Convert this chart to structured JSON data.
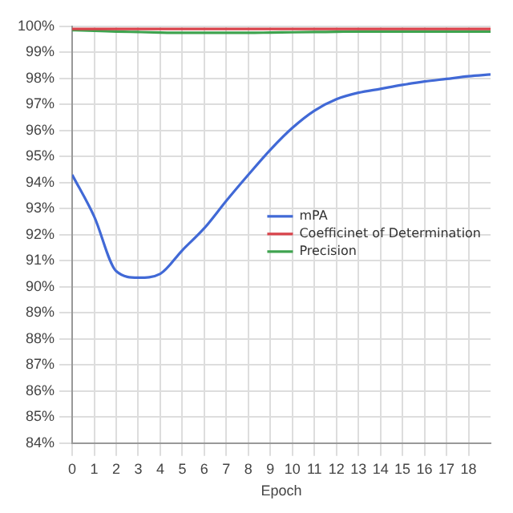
{
  "chart_data": {
    "type": "line",
    "xlabel": "Epoch",
    "x": [
      0,
      1,
      2,
      3,
      4,
      5,
      6,
      7,
      8,
      9,
      10,
      11,
      12,
      13,
      14,
      15,
      16,
      17,
      18,
      19
    ],
    "series": [
      {
        "name": "mPA",
        "color": "#4169d6",
        "values": [
          94.3,
          92.7,
          90.6,
          90.35,
          90.5,
          91.4,
          92.25,
          93.3,
          94.3,
          95.26,
          96.1,
          96.76,
          97.2,
          97.45,
          97.6,
          97.75,
          97.88,
          97.98,
          98.08,
          98.15
        ]
      },
      {
        "name": "Coefficinet of Determination",
        "color": "#d9434b",
        "values": [
          99.9,
          99.9,
          99.9,
          99.9,
          99.9,
          99.9,
          99.9,
          99.9,
          99.9,
          99.9,
          99.9,
          99.9,
          99.9,
          99.9,
          99.9,
          99.9,
          99.9,
          99.9,
          99.9,
          99.9
        ]
      },
      {
        "name": "Precision",
        "color": "#3fa34f",
        "values": [
          99.85,
          99.83,
          99.8,
          99.78,
          99.76,
          99.75,
          99.75,
          99.75,
          99.75,
          99.76,
          99.77,
          99.78,
          99.79,
          99.8,
          99.8,
          99.8,
          99.8,
          99.8,
          99.8,
          99.8
        ]
      }
    ],
    "xlim": [
      0,
      19
    ],
    "xticks": [
      0,
      1,
      2,
      3,
      4,
      5,
      6,
      7,
      8,
      9,
      10,
      11,
      12,
      13,
      14,
      15,
      16,
      17,
      18
    ],
    "ylim": [
      84,
      100
    ],
    "yticks": [
      {
        "value": 84,
        "label": "84%"
      },
      {
        "value": 85,
        "label": "85%"
      },
      {
        "value": 86,
        "label": "86%"
      },
      {
        "value": 87,
        "label": "87%"
      },
      {
        "value": 88,
        "label": "88%"
      },
      {
        "value": 89,
        "label": "89%"
      },
      {
        "value": 90,
        "label": "90%"
      },
      {
        "value": 91,
        "label": "91%"
      },
      {
        "value": 92,
        "label": "92%"
      },
      {
        "value": 93,
        "label": "93%"
      },
      {
        "value": 94,
        "label": "94%"
      },
      {
        "value": 95,
        "label": "95%"
      },
      {
        "value": 96,
        "label": "96%"
      },
      {
        "value": 97,
        "label": "97%"
      },
      {
        "value": 98,
        "label": "98%"
      },
      {
        "value": 99,
        "label": "99%"
      },
      {
        "value": 100,
        "label": "100%"
      }
    ],
    "grid": true,
    "legend": "right",
    "marker": "none",
    "line_style": "solid"
  }
}
